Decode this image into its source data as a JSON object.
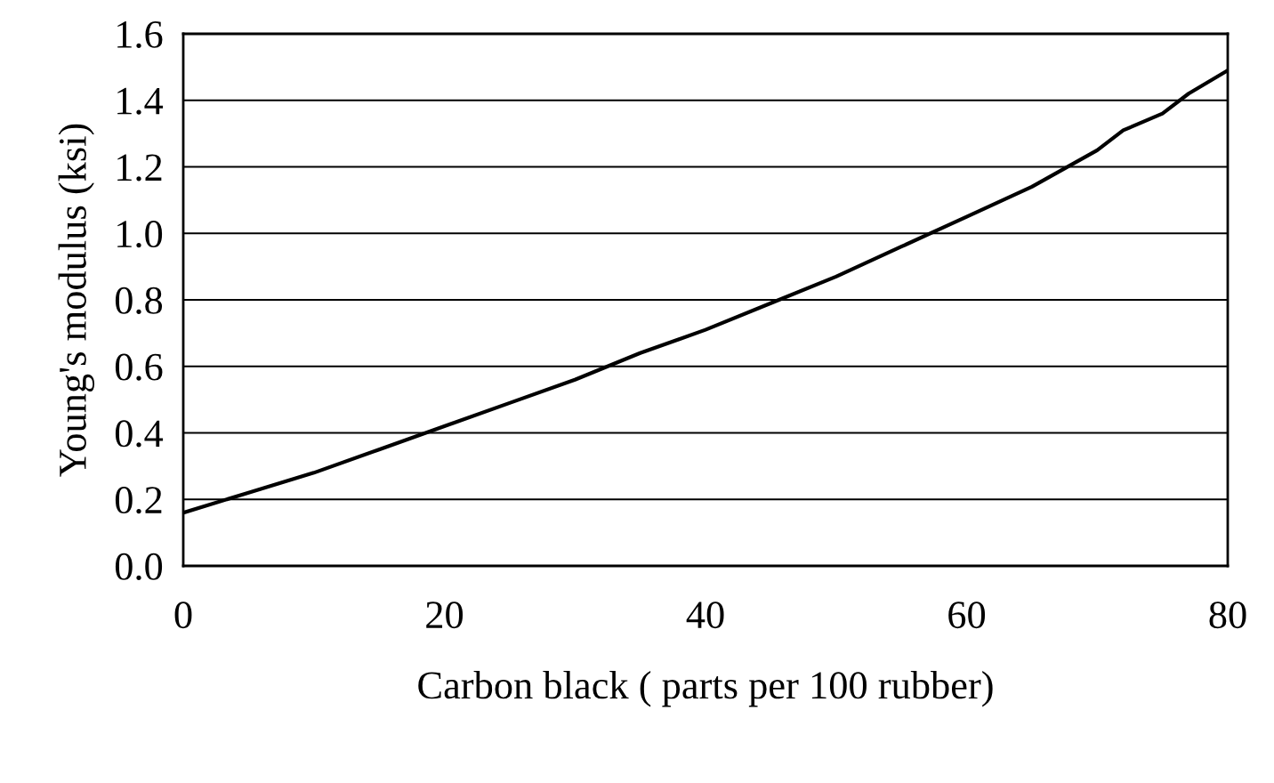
{
  "chart_data": {
    "type": "line",
    "xlabel": "Carbon black ( parts per 100 rubber)",
    "ylabel": "Young's modulus (ksi)",
    "x": [
      0,
      5,
      10,
      15,
      20,
      25,
      30,
      35,
      40,
      45,
      50,
      55,
      60,
      65,
      70,
      72,
      75,
      77,
      80
    ],
    "series": [
      {
        "color": "#000000",
        "values": [
          0.16,
          0.22,
          0.28,
          0.35,
          0.42,
          0.49,
          0.56,
          0.64,
          0.71,
          0.79,
          0.87,
          0.96,
          1.05,
          1.14,
          1.25,
          1.31,
          1.36,
          1.42,
          1.49
        ]
      }
    ],
    "xlim": [
      0,
      80
    ],
    "xticks": [
      0,
      20,
      40,
      60,
      80
    ],
    "ylim": [
      0,
      1.6
    ],
    "yticks": [
      {
        "value": 0,
        "label": "0.0"
      },
      {
        "value": 0.2,
        "label": "0.2"
      },
      {
        "value": 0.4,
        "label": "0.4"
      },
      {
        "value": 0.6,
        "label": "0.6"
      },
      {
        "value": 0.8,
        "label": "0.8"
      },
      {
        "value": 1.0,
        "label": "1.0"
      },
      {
        "value": 1.2,
        "label": "1.2"
      },
      {
        "value": 1.4,
        "label": "1.4"
      },
      {
        "value": 1.6,
        "label": "1.6"
      }
    ],
    "grid": "y",
    "line_style": "solid",
    "marker": "none"
  }
}
